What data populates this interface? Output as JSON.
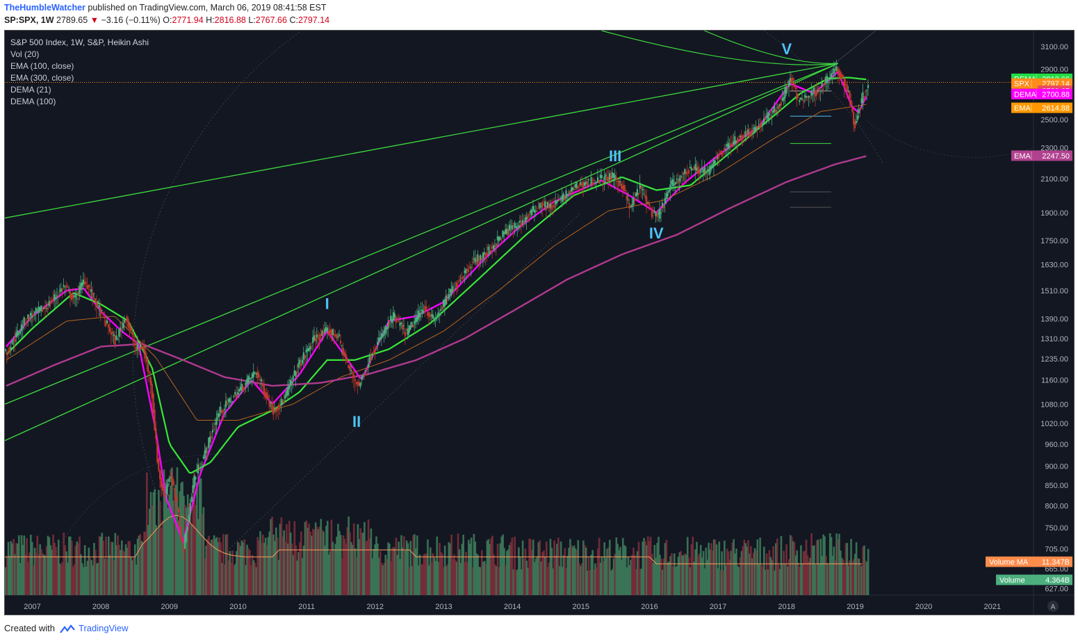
{
  "header": {
    "author": "TheHumbleWatcher",
    "published_text": "published on TradingView.com, March 06, 2019 08:41:58 EST",
    "symbol": "SP:SPX, 1W",
    "last": "2789.65",
    "change_arrow": "▼",
    "change": "−3.16 (−0.11%)",
    "o_label": "O:",
    "o_value": "2771.94",
    "h_label": "H:",
    "h_value": "2816.88",
    "l_label": "L:",
    "l_value": "2767.66",
    "c_label": "C:",
    "c_value": "2797.14"
  },
  "legend": {
    "title": "S&P 500 Index, 1W, S&P, Heikin Ashi",
    "items": [
      "Vol (20)",
      "EMA (100, close)",
      "EMA (300, close)",
      "DEMA (21)",
      "DEMA (100)"
    ]
  },
  "footer": {
    "created_with": "Created with",
    "brand": "TradingView"
  },
  "colors": {
    "background": "#131722",
    "up_candle": "#4caf7d",
    "down_candle": "#c0392b",
    "dema21": "#ff00ff",
    "dema100": "#39e639",
    "ema100": "#b5651d",
    "ema300": "#b03a8e",
    "trendline": "#3ddc3d",
    "wave_label": "#4fc3f7"
  },
  "chart_data": {
    "type": "line",
    "title": "S&P 500 Index, 1W, S&P, Heikin Ashi",
    "y_scale": "log",
    "ylim": [
      615,
      3250
    ],
    "xlim": [
      2006.6,
      2021.6
    ],
    "y_ticks": [
      "3100.00",
      "2900.00",
      "2500.00",
      "2300.00",
      "2100.00",
      "1900.00",
      "1750.00",
      "1630.00",
      "1510.00",
      "1390.00",
      "1310.00",
      "1235.00",
      "1160.00",
      "1080.00",
      "1020.00",
      "960.00",
      "900.00",
      "850.00",
      "800.00",
      "750.00",
      "705.00",
      "665.00",
      "627.00"
    ],
    "x_ticks": [
      "2007",
      "2008",
      "2009",
      "2010",
      "2011",
      "2012",
      "2013",
      "2014",
      "2015",
      "2016",
      "2017",
      "2018",
      "2019",
      "2020",
      "2021"
    ],
    "price_points": [
      [
        2006.62,
        1260
      ],
      [
        2006.9,
        1390
      ],
      [
        2007.2,
        1440
      ],
      [
        2007.45,
        1530
      ],
      [
        2007.6,
        1470
      ],
      [
        2007.75,
        1560
      ],
      [
        2007.9,
        1470
      ],
      [
        2008.05,
        1380
      ],
      [
        2008.2,
        1300
      ],
      [
        2008.35,
        1400
      ],
      [
        2008.5,
        1270
      ],
      [
        2008.6,
        1280
      ],
      [
        2008.72,
        1150
      ],
      [
        2008.82,
        900
      ],
      [
        2008.9,
        820
      ],
      [
        2009.0,
        880
      ],
      [
        2009.1,
        800
      ],
      [
        2009.19,
        700
      ],
      [
        2009.35,
        870
      ],
      [
        2009.5,
        930
      ],
      [
        2009.7,
        1050
      ],
      [
        2009.95,
        1110
      ],
      [
        2010.25,
        1190
      ],
      [
        2010.4,
        1110
      ],
      [
        2010.5,
        1060
      ],
      [
        2010.65,
        1090
      ],
      [
        2010.85,
        1200
      ],
      [
        2011.1,
        1310
      ],
      [
        2011.3,
        1340
      ],
      [
        2011.45,
        1320
      ],
      [
        2011.6,
        1200
      ],
      [
        2011.75,
        1140
      ],
      [
        2011.95,
        1260
      ],
      [
        2012.25,
        1400
      ],
      [
        2012.45,
        1330
      ],
      [
        2012.7,
        1440
      ],
      [
        2012.85,
        1380
      ],
      [
        2013.1,
        1510
      ],
      [
        2013.4,
        1640
      ],
      [
        2013.6,
        1680
      ],
      [
        2013.9,
        1800
      ],
      [
        2014.1,
        1840
      ],
      [
        2014.4,
        1950
      ],
      [
        2014.55,
        1930
      ],
      [
        2014.8,
        2010
      ],
      [
        2014.95,
        2060
      ],
      [
        2015.2,
        2090
      ],
      [
        2015.45,
        2110
      ],
      [
        2015.6,
        2060
      ],
      [
        2015.7,
        1920
      ],
      [
        2015.85,
        2050
      ],
      [
        2016.05,
        1880
      ],
      [
        2016.12,
        1880
      ],
      [
        2016.3,
        2060
      ],
      [
        2016.6,
        2170
      ],
      [
        2016.85,
        2140
      ],
      [
        2017.0,
        2260
      ],
      [
        2017.3,
        2370
      ],
      [
        2017.6,
        2460
      ],
      [
        2017.9,
        2620
      ],
      [
        2018.05,
        2830
      ],
      [
        2018.15,
        2650
      ],
      [
        2018.3,
        2680
      ],
      [
        2018.5,
        2750
      ],
      [
        2018.7,
        2900
      ],
      [
        2018.8,
        2830
      ],
      [
        2018.9,
        2690
      ],
      [
        2018.98,
        2450
      ],
      [
        2019.05,
        2600
      ],
      [
        2019.15,
        2750
      ],
      [
        2019.18,
        2790
      ]
    ],
    "series": [
      {
        "name": "DEMA (21)",
        "color": "#ff00ff",
        "points": [
          [
            2006.62,
            1280
          ],
          [
            2007.0,
            1400
          ],
          [
            2007.5,
            1510
          ],
          [
            2007.75,
            1520
          ],
          [
            2008.0,
            1420
          ],
          [
            2008.3,
            1340
          ],
          [
            2008.55,
            1290
          ],
          [
            2008.8,
            1000
          ],
          [
            2008.95,
            820
          ],
          [
            2009.2,
            720
          ],
          [
            2009.45,
            880
          ],
          [
            2009.8,
            1050
          ],
          [
            2010.2,
            1160
          ],
          [
            2010.5,
            1080
          ],
          [
            2010.9,
            1180
          ],
          [
            2011.3,
            1340
          ],
          [
            2011.6,
            1230
          ],
          [
            2011.8,
            1160
          ],
          [
            2012.2,
            1380
          ],
          [
            2012.6,
            1400
          ],
          [
            2013.0,
            1460
          ],
          [
            2013.6,
            1660
          ],
          [
            2014.1,
            1820
          ],
          [
            2014.6,
            1960
          ],
          [
            2015.3,
            2090
          ],
          [
            2015.7,
            2000
          ],
          [
            2016.1,
            1900
          ],
          [
            2016.5,
            2070
          ],
          [
            2017.0,
            2250
          ],
          [
            2017.6,
            2450
          ],
          [
            2018.05,
            2780
          ],
          [
            2018.4,
            2700
          ],
          [
            2018.75,
            2880
          ],
          [
            2018.95,
            2600
          ],
          [
            2019.05,
            2550
          ],
          [
            2019.18,
            2700
          ]
        ]
      },
      {
        "name": "DEMA (100)",
        "color": "#39e639",
        "points": [
          [
            2006.62,
            1250
          ],
          [
            2007.0,
            1350
          ],
          [
            2007.6,
            1500
          ],
          [
            2008.0,
            1450
          ],
          [
            2008.4,
            1380
          ],
          [
            2008.75,
            1200
          ],
          [
            2009.0,
            960
          ],
          [
            2009.3,
            880
          ],
          [
            2009.6,
            910
          ],
          [
            2010.0,
            1010
          ],
          [
            2010.5,
            1060
          ],
          [
            2010.9,
            1120
          ],
          [
            2011.3,
            1230
          ],
          [
            2011.7,
            1230
          ],
          [
            2012.2,
            1270
          ],
          [
            2012.8,
            1370
          ],
          [
            2013.5,
            1560
          ],
          [
            2014.2,
            1780
          ],
          [
            2014.9,
            2000
          ],
          [
            2015.6,
            2110
          ],
          [
            2016.1,
            2030
          ],
          [
            2016.6,
            2060
          ],
          [
            2017.1,
            2240
          ],
          [
            2017.7,
            2480
          ],
          [
            2018.2,
            2700
          ],
          [
            2018.6,
            2820
          ],
          [
            2018.9,
            2830
          ],
          [
            2019.18,
            2813
          ]
        ]
      },
      {
        "name": "EMA (100, close)",
        "color": "#b5651d",
        "points": [
          [
            2006.62,
            1230
          ],
          [
            2007.5,
            1380
          ],
          [
            2008.2,
            1400
          ],
          [
            2008.8,
            1240
          ],
          [
            2009.4,
            1030
          ],
          [
            2010.0,
            1030
          ],
          [
            2010.8,
            1080
          ],
          [
            2011.5,
            1170
          ],
          [
            2012.2,
            1230
          ],
          [
            2013.0,
            1340
          ],
          [
            2013.8,
            1510
          ],
          [
            2014.6,
            1720
          ],
          [
            2015.4,
            1910
          ],
          [
            2016.2,
            1970
          ],
          [
            2017.0,
            2130
          ],
          [
            2017.8,
            2360
          ],
          [
            2018.5,
            2560
          ],
          [
            2019.18,
            2615
          ]
        ]
      },
      {
        "name": "EMA (300, close)",
        "color": "#b03a8e",
        "points": [
          [
            2006.62,
            1140
          ],
          [
            2007.3,
            1210
          ],
          [
            2008.0,
            1280
          ],
          [
            2008.6,
            1290
          ],
          [
            2009.2,
            1230
          ],
          [
            2009.8,
            1170
          ],
          [
            2010.5,
            1140
          ],
          [
            2011.2,
            1150
          ],
          [
            2011.9,
            1180
          ],
          [
            2012.6,
            1230
          ],
          [
            2013.3,
            1310
          ],
          [
            2014.0,
            1420
          ],
          [
            2014.8,
            1560
          ],
          [
            2015.6,
            1680
          ],
          [
            2016.4,
            1780
          ],
          [
            2017.2,
            1930
          ],
          [
            2018.0,
            2080
          ],
          [
            2018.7,
            2190
          ],
          [
            2019.18,
            2247
          ]
        ]
      }
    ],
    "volume_ma": "11.347B",
    "volume": "4.364B",
    "price_labels": [
      {
        "name": "DEMA",
        "value": "2813.66",
        "color": "#22dd44"
      },
      {
        "name": "SPX",
        "value": "2797.14",
        "color": "#ff8c1a"
      },
      {
        "name": "",
        "value": "2789.65",
        "color": "#e84c61"
      },
      {
        "name": "DEMA",
        "value": "2700.88",
        "color": "#ff00ff"
      },
      {
        "name": "EMA",
        "value": "2614.88",
        "color": "#ff9800"
      },
      {
        "name": "EMA",
        "value": "2247.50",
        "color": "#b0418e"
      }
    ],
    "volume_labels": [
      {
        "name": "Volume MA",
        "value": "11.347B",
        "color": "#ff8c4a"
      },
      {
        "name": "Volume",
        "value": "4.364B",
        "color": "#4caf7d"
      }
    ],
    "annotations": [
      {
        "text": "I",
        "x": 2011.3,
        "y": 1430
      },
      {
        "text": "II",
        "x": 2011.73,
        "y": 1010
      },
      {
        "text": "III",
        "x": 2015.5,
        "y": 2210
      },
      {
        "text": "IV",
        "x": 2016.1,
        "y": 1760
      },
      {
        "text": "V",
        "x": 2018.0,
        "y": 3030
      }
    ],
    "trendlines": [
      [
        [
          2006.6,
          1870
        ],
        [
          2018.75,
          2950
        ]
      ],
      [
        [
          2006.6,
          1080
        ],
        [
          2018.75,
          2950
        ]
      ],
      [
        [
          2006.6,
          970
        ],
        [
          2018.75,
          2950
        ]
      ]
    ]
  }
}
